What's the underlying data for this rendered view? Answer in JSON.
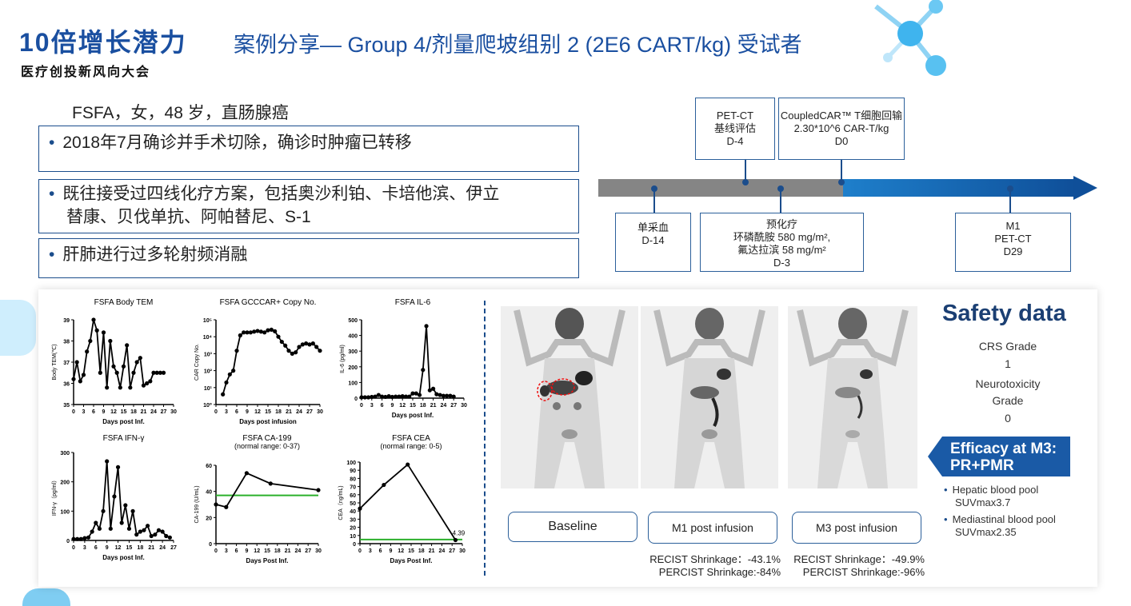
{
  "header": {
    "logo_main": "10倍增长潜力",
    "logo_sub": "医疗创投新风向大会",
    "title": "案例分享— Group 4/剂量爬坡组别 2 (2E6 CART/kg) 受试者"
  },
  "patient": {
    "summary": "FSFA，女，48 岁，直肠腺癌",
    "history": [
      "2018年7月确诊并手术切除，确诊时肿瘤已转移",
      "既往接受过四线化疗方案，包括奥沙利铂、卡培他滨、伊立",
      "替康、贝伐单抗、阿帕替尼、S-1",
      "肝肺进行过多轮射频消融"
    ]
  },
  "timeline": {
    "top": [
      {
        "lines": [
          "PET-CT",
          "基线评估",
          "D-4"
        ]
      },
      {
        "lines": [
          "CoupledCAR™ T细胞回输",
          "2.30*10^6 CAR-T/kg",
          "D0"
        ]
      }
    ],
    "bottom": [
      {
        "lines": [
          "单采血",
          "D-14"
        ]
      },
      {
        "lines": [
          "预化疗",
          "环磷酰胺 580 mg/m²,",
          "氟达拉滨 58 mg/m²",
          "D-3"
        ]
      },
      {
        "lines": [
          "M1",
          "PET-CT",
          "D29"
        ]
      }
    ]
  },
  "chart_data": [
    {
      "type": "line",
      "title": "FSFA Body TEM",
      "xlabel": "Days post Inf.",
      "ylabel": "Body TEM(℃)",
      "xlim": [
        0,
        30
      ],
      "ylim": [
        35,
        39
      ],
      "xticks": [
        0,
        3,
        6,
        9,
        12,
        15,
        18,
        21,
        24,
        27,
        30
      ],
      "yticks": [
        35,
        36,
        37,
        38,
        39
      ],
      "x": [
        0,
        1,
        2,
        3,
        4,
        5,
        6,
        7,
        8,
        9,
        10,
        11,
        12,
        13,
        14,
        15,
        16,
        17,
        18,
        19,
        20,
        21,
        22,
        23,
        24,
        25,
        26,
        27
      ],
      "y": [
        36.2,
        37.0,
        36.1,
        36.4,
        37.5,
        38.0,
        39.0,
        38.5,
        36.5,
        38.4,
        35.8,
        38.0,
        36.8,
        36.5,
        35.8,
        36.8,
        37.8,
        35.8,
        36.5,
        37.0,
        37.2,
        35.9,
        36.0,
        36.1,
        36.5,
        36.5,
        36.5,
        36.5
      ]
    },
    {
      "type": "line",
      "title": "FSFA GCCCAR+ Copy No.",
      "xlabel": "Days post infusion",
      "ylabel": "CAR Copy No.",
      "scale": "log",
      "xlim": [
        0,
        30
      ],
      "ylim": [
        1,
        100000
      ],
      "xticks": [
        0,
        3,
        6,
        9,
        12,
        15,
        18,
        21,
        24,
        27,
        30
      ],
      "yticks": [
        "10⁰",
        "10¹",
        "10²",
        "10³",
        "10⁴",
        "10⁵"
      ],
      "x": [
        2,
        3,
        4,
        5,
        6,
        7,
        8,
        9,
        10,
        11,
        12,
        13,
        14,
        15,
        16,
        17,
        18,
        19,
        20,
        21,
        22,
        23,
        24,
        25,
        26,
        27,
        28,
        29,
        30
      ],
      "y": [
        4,
        20,
        60,
        100,
        1500,
        12000,
        18000,
        18000,
        18000,
        20000,
        22000,
        20000,
        18000,
        24000,
        26000,
        21000,
        10000,
        5000,
        3000,
        1500,
        1000,
        1200,
        2500,
        3500,
        4000,
        3500,
        4000,
        2500,
        1500
      ]
    },
    {
      "type": "line",
      "title": "FSFA IL-6",
      "xlabel": "Days post Inf.",
      "ylabel": "IL-6 (pg/ml)",
      "xlim": [
        0,
        30
      ],
      "ylim": [
        0,
        500
      ],
      "xticks": [
        0,
        3,
        6,
        9,
        12,
        15,
        18,
        21,
        24,
        27,
        30
      ],
      "yticks": [
        0,
        100,
        200,
        300,
        400,
        500
      ],
      "x": [
        0,
        1,
        2,
        3,
        4,
        5,
        6,
        7,
        8,
        9,
        10,
        11,
        12,
        13,
        14,
        15,
        16,
        17,
        18,
        19,
        20,
        21,
        22,
        23,
        24,
        25,
        26,
        27
      ],
      "y": [
        5,
        5,
        5,
        8,
        10,
        20,
        10,
        8,
        12,
        8,
        10,
        10,
        12,
        10,
        10,
        30,
        30,
        20,
        180,
        460,
        50,
        60,
        25,
        20,
        15,
        15,
        15,
        10
      ]
    },
    {
      "type": "line",
      "title": "FSFA  IFN-γ",
      "xlabel": "Days post Inf.",
      "ylabel": "IFN-γ（pg/ml）",
      "xlim": [
        0,
        27
      ],
      "ylim": [
        0,
        300
      ],
      "xticks": [
        0,
        3,
        6,
        9,
        12,
        15,
        18,
        21,
        24,
        27
      ],
      "yticks": [
        0,
        100,
        200,
        300
      ],
      "x": [
        0,
        1,
        2,
        3,
        4,
        5,
        6,
        7,
        8,
        9,
        10,
        11,
        12,
        13,
        14,
        15,
        16,
        17,
        18,
        19,
        20,
        21,
        22,
        23,
        24,
        25,
        26
      ],
      "y": [
        5,
        5,
        5,
        8,
        10,
        30,
        60,
        40,
        100,
        270,
        40,
        150,
        250,
        60,
        120,
        40,
        100,
        20,
        30,
        35,
        50,
        15,
        20,
        35,
        30,
        15,
        10
      ]
    },
    {
      "type": "line",
      "title": "FSFA CA-199",
      "subtitle": "(normal range: 0-37)",
      "xlabel": "Days Post Inf.",
      "ylabel": "CA-199 (U/mL)",
      "xlim": [
        0,
        30
      ],
      "ylim": [
        0,
        60
      ],
      "xticks": [
        0,
        3,
        6,
        9,
        12,
        15,
        18,
        21,
        24,
        27,
        30
      ],
      "yticks": [
        0,
        20,
        40,
        60
      ],
      "reference_line": 37,
      "x": [
        0,
        3,
        9,
        16,
        30
      ],
      "y": [
        30,
        28,
        54,
        46,
        41
      ]
    },
    {
      "type": "line",
      "title": "FSFA CEA",
      "subtitle": "(normal range: 0-5)",
      "xlabel": "Days Post Inf.",
      "ylabel": "CEA（ng/mL)",
      "xlim": [
        0,
        30
      ],
      "ylim": [
        0,
        100
      ],
      "xticks": [
        0,
        3,
        6,
        9,
        12,
        15,
        18,
        21,
        24,
        27,
        30
      ],
      "yticks": [
        0,
        10,
        20,
        30,
        40,
        50,
        60,
        70,
        80,
        90,
        100
      ],
      "reference_line": 5,
      "x": [
        0,
        7,
        14,
        28
      ],
      "y": [
        43,
        72,
        97,
        4.39
      ],
      "annotation": "4.39"
    }
  ],
  "scans": [
    {
      "label": "Baseline"
    },
    {
      "label": "M1 post infusion",
      "recist": "RECIST Shrinkage：-43.1%",
      "percist": "PERCIST Shrinkage:-84%"
    },
    {
      "label": "M3 post infusion",
      "recist": "RECIST Shrinkage：-49.9%",
      "percist": "PERCIST Shrinkage:-96%"
    }
  ],
  "safety": {
    "title": "Safety data",
    "crs_label": "CRS Grade",
    "crs_value": "1",
    "neuro_label_1": "Neurotoxicity",
    "neuro_label_2": "Grade",
    "neuro_value": "0"
  },
  "efficacy": {
    "banner_1": "Efficacy at M3:",
    "banner_2": "PR+PMR",
    "items": [
      {
        "l1": "Hepatic blood pool",
        "l2": "SUVmax3.7"
      },
      {
        "l1": "Mediastinal blood pool",
        "l2": "SUVmax2.35"
      }
    ]
  },
  "colors": {
    "accent": "#1a4fa0",
    "border": "#1b4d8c",
    "reference": "#2bb02b"
  }
}
